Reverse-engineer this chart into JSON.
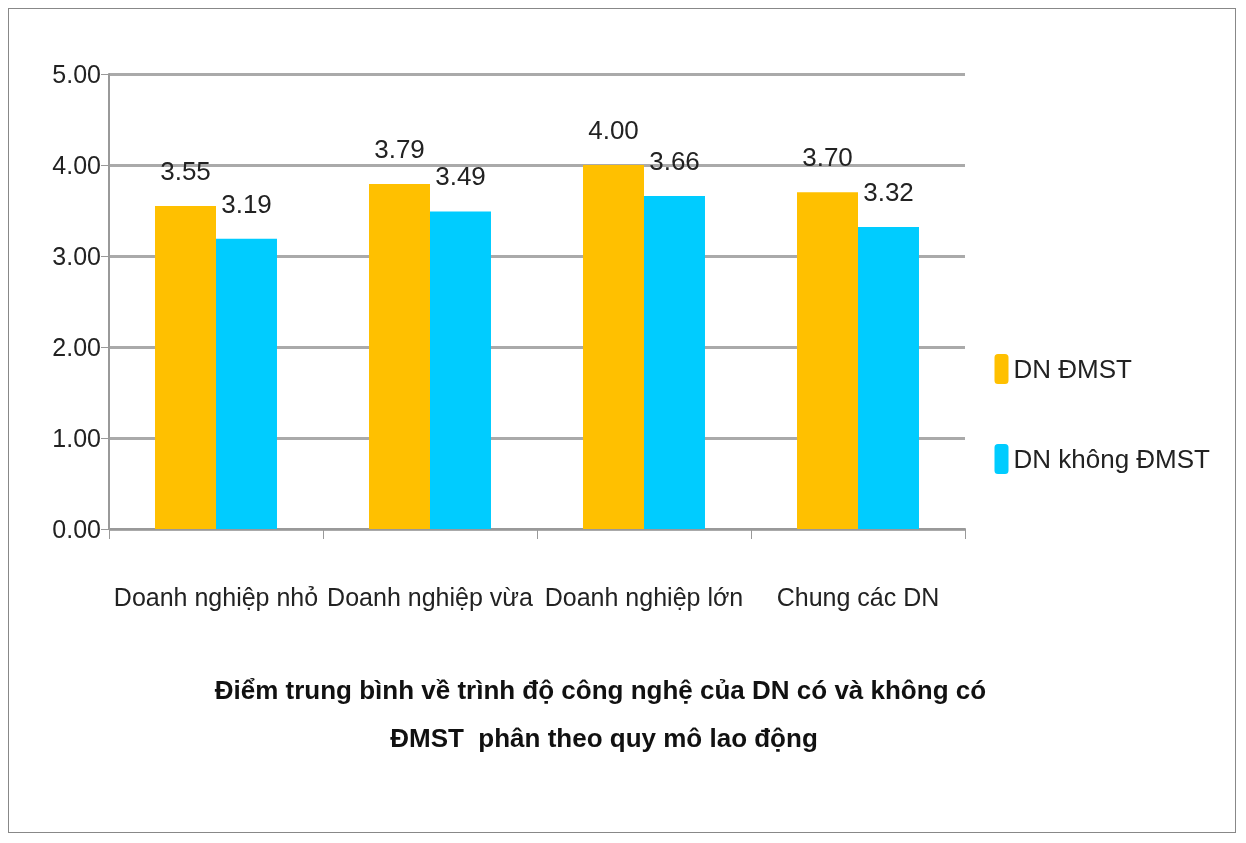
{
  "chart_data": {
    "type": "bar",
    "title": "Điểm trung bình về trình độ công nghệ của DN có và không có ĐMST  phân theo quy mô lao động",
    "categories": [
      "Doanh nghiệp nhỏ",
      "Doanh nghiệp vừa",
      "Doanh nghiệp lớn",
      "Chung các DN"
    ],
    "series": [
      {
        "name": "DN ĐMST",
        "color": "#ffc000",
        "values": [
          3.55,
          3.79,
          4.0,
          3.7
        ],
        "value_labels": [
          "3.55",
          "3.79",
          "4.00",
          "3.70"
        ]
      },
      {
        "name": "DN không ĐMST",
        "color": "#00ccff",
        "values": [
          3.19,
          3.49,
          3.66,
          3.32
        ],
        "value_labels": [
          "3.19",
          "3.49",
          "3.66",
          "3.32"
        ]
      }
    ],
    "ylim": [
      0,
      5
    ],
    "yticks": [
      {
        "value": 0,
        "label": "0.00"
      },
      {
        "value": 1,
        "label": "1.00"
      },
      {
        "value": 2,
        "label": "2.00"
      },
      {
        "value": 3,
        "label": "3.00"
      },
      {
        "value": 4,
        "label": "4.00"
      },
      {
        "value": 5,
        "label": "5.00"
      }
    ],
    "grid": "y",
    "legend": "right"
  }
}
